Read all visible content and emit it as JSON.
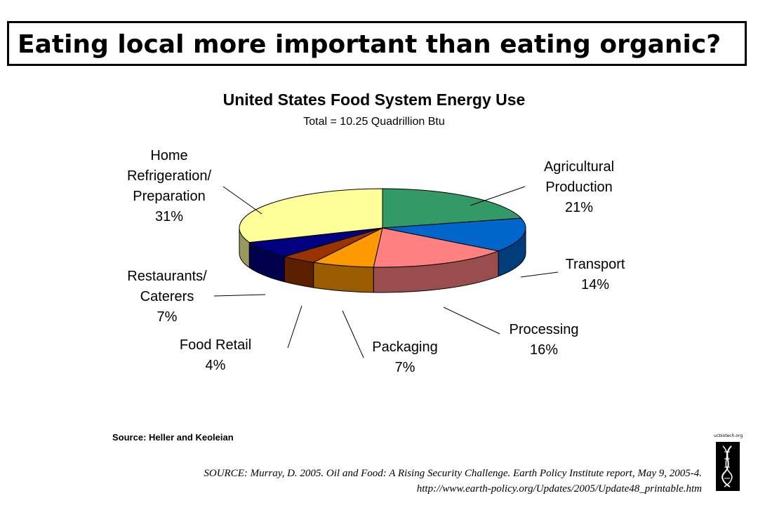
{
  "slide": {
    "title": "Eating local more important than eating organic?",
    "citation_line1": "SOURCE: Murray, D. 2005. Oil and Food: A Rising Security Challenge. Earth Policy Institute report, May 9, 2005-4.",
    "citation_line2": "http://www.earth-policy.org/Updates/2005/Update48_printable.htm",
    "logo_text": "ucbiotech.org"
  },
  "chart_data": {
    "type": "pie",
    "title": "United States Food System Energy Use",
    "subtitle": "Total = 10.25 Quadrillion Btu",
    "source": "Source: Heller and Keoleian",
    "three_d": true,
    "slices": [
      {
        "label": [
          "Agricultural",
          "Production",
          "21%"
        ],
        "value": 21,
        "color": "#339966"
      },
      {
        "label": [
          "Transport",
          "14%"
        ],
        "value": 14,
        "color": "#0066cc"
      },
      {
        "label": [
          "Processing",
          "16%"
        ],
        "value": 16,
        "color": "#ff8080"
      },
      {
        "label": [
          "Packaging",
          "7%"
        ],
        "value": 7,
        "color": "#ff9900"
      },
      {
        "label": [
          "Food Retail",
          "4%"
        ],
        "value": 4,
        "color": "#993300"
      },
      {
        "label": [
          "Restaurants/",
          "Caterers",
          "7%"
        ],
        "value": 7,
        "color": "#000080"
      },
      {
        "label": [
          "Home",
          "Refrigeration/",
          "Preparation",
          "31%"
        ],
        "value": 31,
        "color": "#ffff99"
      }
    ]
  }
}
